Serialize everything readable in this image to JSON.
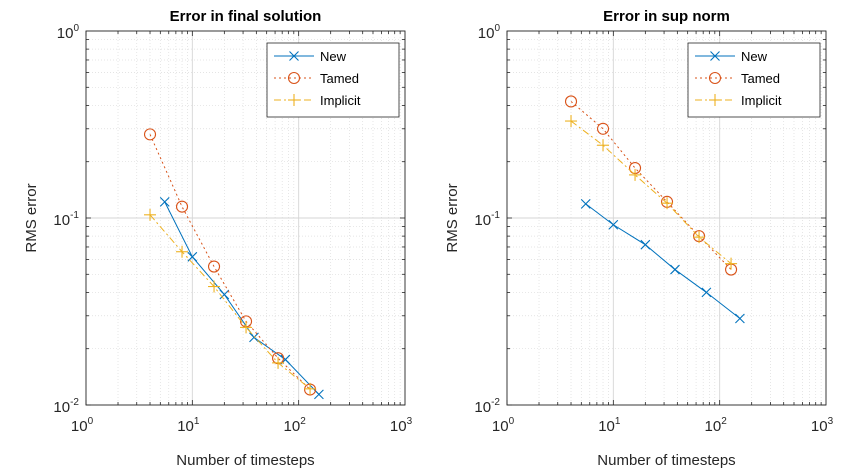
{
  "chart_data": [
    {
      "type": "line",
      "title": "Error in final solution",
      "xlabel": "Number of timesteps",
      "ylabel": "RMS error",
      "xscale": "log",
      "yscale": "log",
      "xlim": [
        1,
        1000
      ],
      "ylim": [
        0.01,
        1
      ],
      "grid": true,
      "legend_position": "top-right",
      "x_ticks": [
        "10^0",
        "10^1",
        "10^2",
        "10^3"
      ],
      "y_ticks": [
        "10^-2",
        "10^-1",
        "10^0"
      ],
      "series": [
        {
          "name": "New",
          "color": "#0072BD",
          "marker": "x",
          "line": "solid",
          "x": [
            5.5,
            10,
            20,
            38,
            75,
            155
          ],
          "y": [
            0.122,
            0.062,
            0.039,
            0.023,
            0.0175,
            0.0114
          ]
        },
        {
          "name": "Tamed",
          "color": "#D95319",
          "marker": "o",
          "line": "dotted",
          "x": [
            4,
            8,
            16,
            32,
            64,
            128
          ],
          "y": [
            0.28,
            0.115,
            0.055,
            0.028,
            0.0178,
            0.0121
          ]
        },
        {
          "name": "Implicit",
          "color": "#EDB120",
          "marker": "+",
          "line": "dashdot",
          "x": [
            4,
            8,
            16,
            32,
            64,
            128
          ],
          "y": [
            0.104,
            0.066,
            0.043,
            0.026,
            0.0168,
            0.0122
          ]
        }
      ]
    },
    {
      "type": "line",
      "title": "Error in sup norm",
      "xlabel": "Number of timesteps",
      "ylabel": "RMS error",
      "xscale": "log",
      "yscale": "log",
      "xlim": [
        1,
        1000
      ],
      "ylim": [
        0.01,
        1
      ],
      "grid": true,
      "legend_position": "top-right",
      "x_ticks": [
        "10^0",
        "10^1",
        "10^2",
        "10^3"
      ],
      "y_ticks": [
        "10^-2",
        "10^-1",
        "10^0"
      ],
      "series": [
        {
          "name": "New",
          "color": "#0072BD",
          "marker": "x",
          "line": "solid",
          "x": [
            5.5,
            10,
            20,
            38,
            75,
            155
          ],
          "y": [
            0.119,
            0.092,
            0.072,
            0.053,
            0.04,
            0.029
          ]
        },
        {
          "name": "Tamed",
          "color": "#D95319",
          "marker": "o",
          "line": "dotted",
          "x": [
            4,
            8,
            16,
            32,
            64,
            128
          ],
          "y": [
            0.42,
            0.3,
            0.185,
            0.122,
            0.08,
            0.053
          ]
        },
        {
          "name": "Implicit",
          "color": "#EDB120",
          "marker": "+",
          "line": "dashdot",
          "x": [
            4,
            8,
            16,
            32,
            64,
            128
          ],
          "y": [
            0.33,
            0.245,
            0.17,
            0.12,
            0.079,
            0.057
          ]
        }
      ]
    }
  ]
}
